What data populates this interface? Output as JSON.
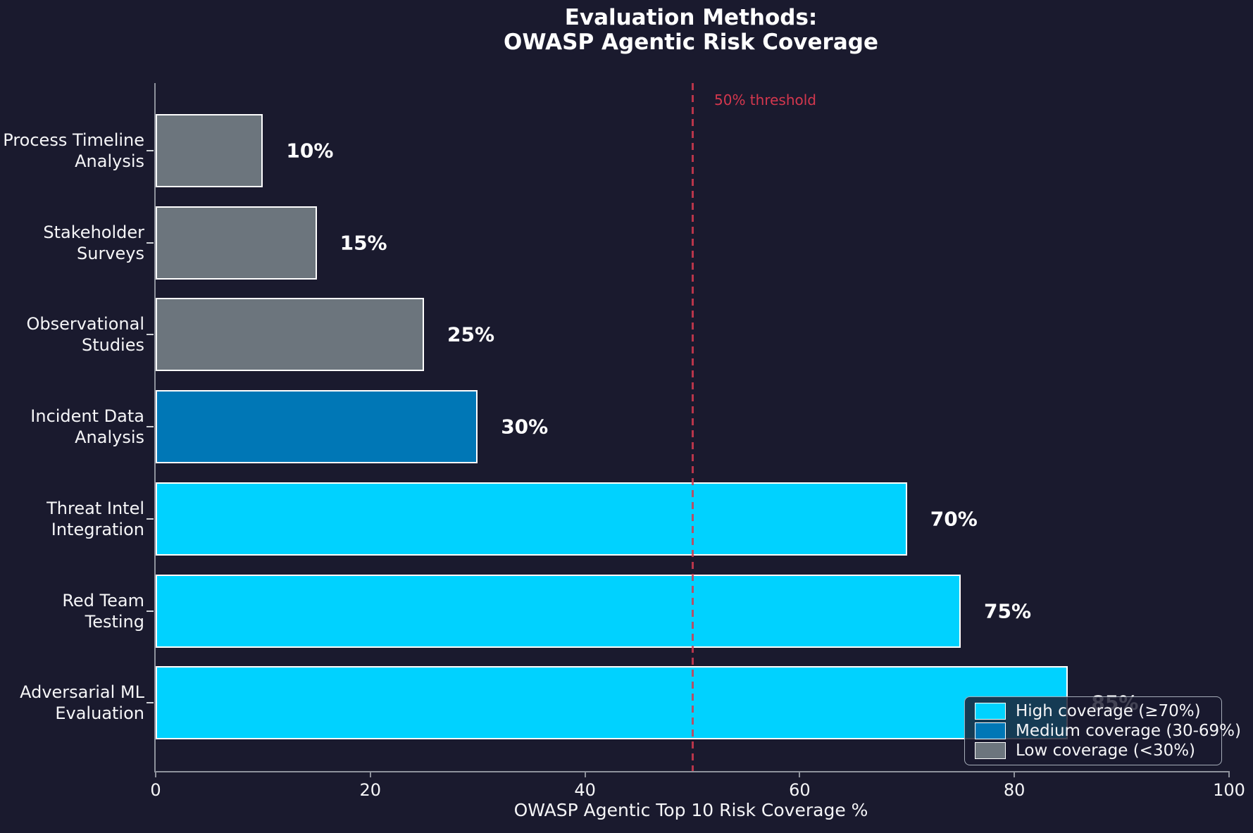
{
  "chart_data": {
    "type": "bar",
    "orientation": "horizontal",
    "title": "Evaluation Methods:\nOWASP Agentic Risk Coverage",
    "xlabel": "OWASP Agentic Top 10 Risk Coverage %",
    "xlim": [
      0,
      100
    ],
    "xticks": [
      0,
      20,
      40,
      60,
      80,
      100
    ],
    "grid": false,
    "categories": [
      "Process Timeline\nAnalysis",
      "Stakeholder\nSurveys",
      "Observational\nStudies",
      "Incident Data\nAnalysis",
      "Threat Intel\nIntegration",
      "Red Team\nTesting",
      "Adversarial ML\nEvaluation"
    ],
    "values": [
      10,
      15,
      25,
      30,
      70,
      75,
      85
    ],
    "value_labels": [
      "10%",
      "15%",
      "25%",
      "30%",
      "70%",
      "75%",
      "85%"
    ],
    "bar_colors": [
      "#6c757d",
      "#6c757d",
      "#6c757d",
      "#0077b6",
      "#00d2ff",
      "#00d2ff",
      "#00d2ff"
    ],
    "bar_edge_color": "#ffffff",
    "threshold": {
      "value": 50,
      "label": "50% threshold",
      "color": "#d4374e"
    },
    "legend": {
      "position": "lower right",
      "items": [
        {
          "label": "High coverage (≥70%)",
          "color": "#00d2ff"
        },
        {
          "label": "Medium coverage (30-69%)",
          "color": "#0077b6"
        },
        {
          "label": "Low coverage (<30%)",
          "color": "#6c757d"
        }
      ]
    },
    "colors": {
      "background": "#1a1a2e",
      "text": "#f5f5f7",
      "axis": "#8e929c"
    }
  }
}
